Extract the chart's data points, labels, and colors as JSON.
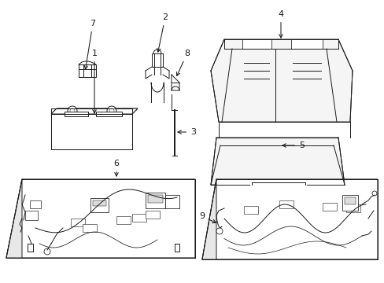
{
  "bg_color": "#ffffff",
  "line_color": "#1a1a1a",
  "fig_width": 4.89,
  "fig_height": 3.6,
  "dpi": 100,
  "parts_lw": 0.7
}
